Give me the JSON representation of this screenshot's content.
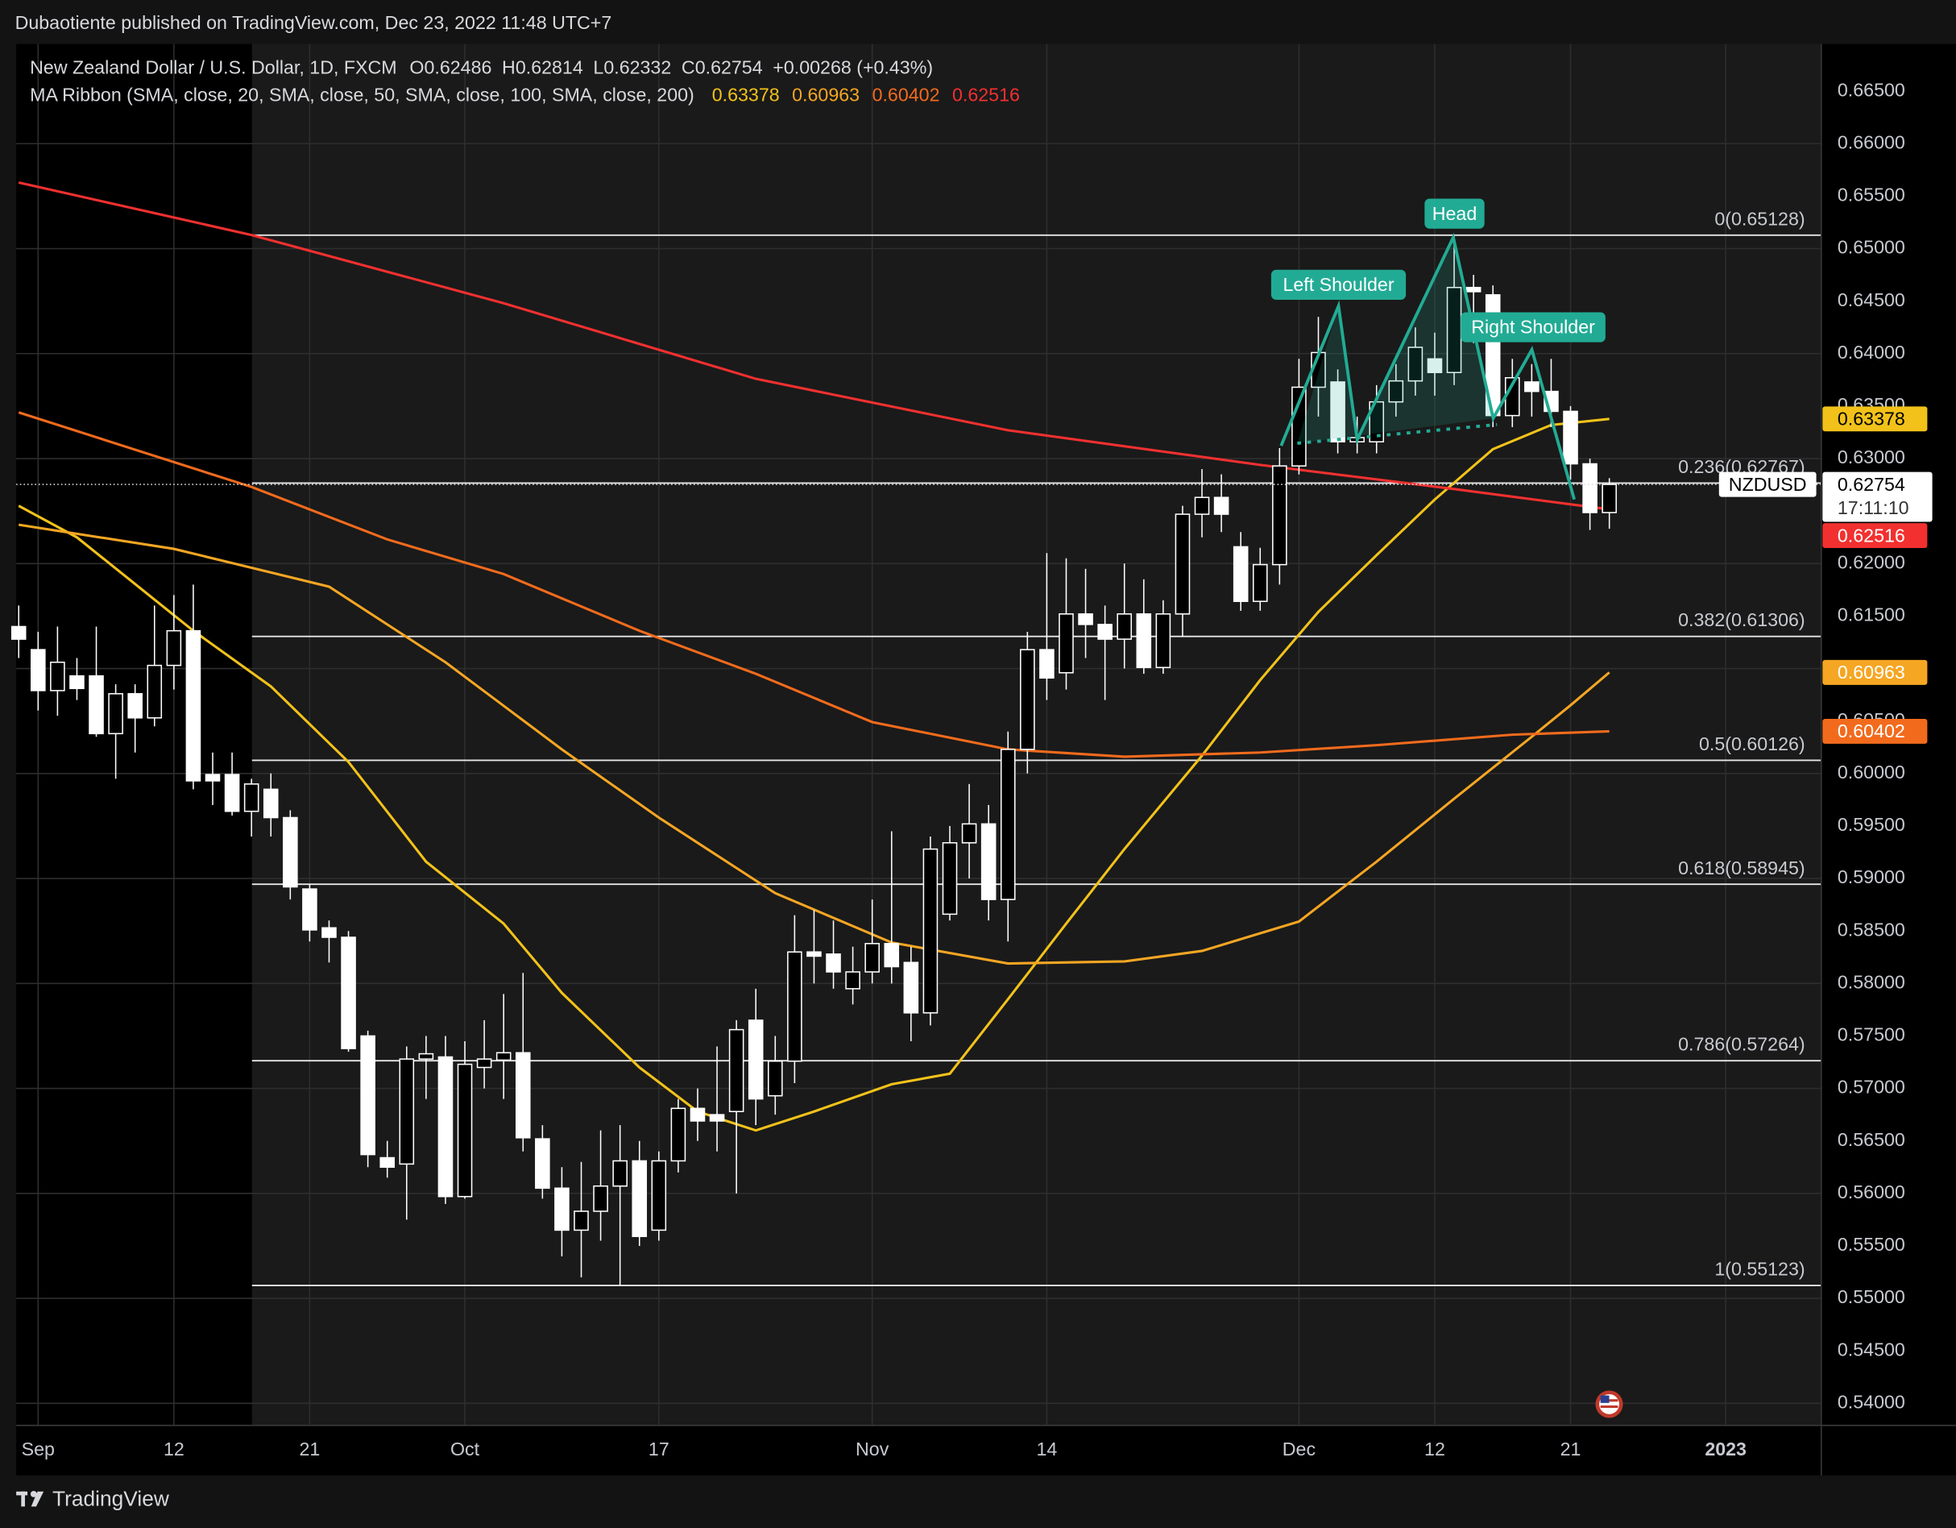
{
  "header": {
    "published": "Dubaotiente published on TradingView.com, Dec 23, 2022 11:48 UTC+7",
    "brand": "TradingView"
  },
  "chart_data": {
    "type": "candlestick",
    "title": "New Zealand Dollar / U.S. Dollar, 1D, FXCM",
    "ohlc_labels": [
      "O",
      "H",
      "L",
      "C"
    ],
    "change": "+0.00268 (+0.43%)",
    "indicator": "MA Ribbon (SMA, close, 20, SMA, close, 50, SMA, close, 100, SMA, close, 200)",
    "symbol": "NZDUSD",
    "countdown": "17:11:10",
    "categories": [
      null,
      "Sep",
      null,
      null,
      null,
      null,
      null,
      null,
      "12",
      null,
      null,
      null,
      null,
      null,
      null,
      "21",
      null,
      null,
      null,
      null,
      null,
      null,
      null,
      "Oct",
      null,
      null,
      null,
      null,
      null,
      null,
      null,
      null,
      null,
      "17",
      null,
      null,
      null,
      null,
      null,
      null,
      null,
      null,
      null,
      null,
      "Nov",
      null,
      null,
      null,
      null,
      null,
      null,
      null,
      null,
      "14",
      null,
      null,
      null,
      null,
      null,
      null,
      null,
      null,
      null,
      null,
      null,
      null,
      "Dec",
      null,
      null,
      null,
      null,
      null,
      null,
      "12",
      null,
      null,
      null,
      null,
      null,
      null,
      "21",
      null,
      null,
      null,
      null,
      null,
      null,
      null,
      "2023"
    ],
    "open": [
      0.614,
      0.6118,
      0.6079,
      0.6093,
      0.6093,
      0.6038,
      0.6076,
      0.6053,
      0.6103,
      0.6136,
      0.5999,
      0.5999,
      0.5964,
      0.5985,
      0.5958,
      0.589,
      0.5853,
      0.5844,
      0.575,
      0.5634,
      0.5628,
      0.5728,
      0.573,
      0.5597,
      0.572,
      0.5727,
      0.5734,
      0.5652,
      0.5605,
      0.5565,
      0.5583,
      0.5607,
      0.5631,
      0.5565,
      0.5631,
      0.5681,
      0.5675,
      0.5678,
      0.5765,
      0.5693,
      0.5726,
      0.583,
      0.5828,
      0.5795,
      0.5811,
      0.5838,
      0.582,
      0.5772,
      0.5866,
      0.5934,
      0.5952,
      0.588,
      0.6023,
      0.6118,
      0.6096,
      0.6152,
      0.6142,
      0.6128,
      0.6152,
      0.6101,
      0.6152,
      0.6247,
      0.6263,
      0.6216,
      0.6164,
      0.6199,
      0.6293,
      0.6368,
      0.6373,
      0.6316,
      0.6316,
      0.6354,
      0.6374,
      0.6395,
      0.6382,
      0.6463,
      0.6456,
      0.6341,
      0.6373,
      0.6364,
      0.6345,
      0.6295,
      0.62486,
      null,
      null,
      null,
      null,
      null,
      null
    ],
    "high": [
      0.616,
      0.6135,
      0.614,
      0.611,
      0.614,
      0.6085,
      0.6085,
      0.616,
      0.617,
      0.618,
      0.602,
      0.602,
      0.5995,
      0.6,
      0.5965,
      0.5895,
      0.586,
      0.585,
      0.5755,
      0.565,
      0.574,
      0.575,
      0.575,
      0.5745,
      0.5765,
      0.579,
      0.581,
      0.5665,
      0.5625,
      0.563,
      0.566,
      0.5665,
      0.565,
      0.564,
      0.569,
      0.57,
      0.574,
      0.5765,
      0.5795,
      0.575,
      0.5865,
      0.587,
      0.586,
      0.5835,
      0.588,
      0.5945,
      0.5835,
      0.594,
      0.595,
      0.599,
      0.597,
      0.604,
      0.6135,
      0.621,
      0.6205,
      0.6195,
      0.616,
      0.62,
      0.6185,
      0.6165,
      0.6255,
      0.629,
      0.6285,
      0.623,
      0.6215,
      0.631,
      0.6395,
      0.6435,
      0.6385,
      0.634,
      0.637,
      0.639,
      0.6425,
      0.642,
      0.6513,
      0.6475,
      0.6465,
      0.6395,
      0.639,
      0.6395,
      0.635,
      0.63,
      0.62814,
      null,
      null,
      null,
      null,
      null,
      null
    ],
    "low": [
      0.611,
      0.606,
      0.6055,
      0.607,
      0.6035,
      0.5995,
      0.602,
      0.6045,
      0.608,
      0.5985,
      0.597,
      0.596,
      0.594,
      0.594,
      0.588,
      0.584,
      0.582,
      0.5735,
      0.5625,
      0.5615,
      0.5575,
      0.569,
      0.559,
      0.5595,
      0.57,
      0.569,
      0.564,
      0.5595,
      0.554,
      0.552,
      0.5555,
      0.5512,
      0.555,
      0.5555,
      0.562,
      0.565,
      0.564,
      0.56,
      0.5665,
      0.5675,
      0.5705,
      0.58,
      0.5795,
      0.578,
      0.58,
      0.58,
      0.5745,
      0.576,
      0.586,
      0.59,
      0.586,
      0.584,
      0.6,
      0.607,
      0.608,
      0.611,
      0.607,
      0.61,
      0.6095,
      0.6095,
      0.613,
      0.6225,
      0.623,
      0.6155,
      0.6155,
      0.618,
      0.6285,
      0.634,
      0.6305,
      0.6305,
      0.6305,
      0.634,
      0.636,
      0.636,
      0.637,
      0.641,
      0.633,
      0.633,
      0.634,
      0.633,
      0.628,
      0.6232,
      0.62332,
      null,
      null,
      null,
      null,
      null,
      null
    ],
    "close": [
      0.6128,
      0.6079,
      0.6106,
      0.6081,
      0.6038,
      0.6076,
      0.6053,
      0.6103,
      0.6136,
      0.5993,
      0.5993,
      0.5964,
      0.599,
      0.5958,
      0.5892,
      0.5851,
      0.5844,
      0.5738,
      0.5637,
      0.5625,
      0.5728,
      0.5733,
      0.5597,
      0.5723,
      0.5728,
      0.5734,
      0.5653,
      0.5605,
      0.5565,
      0.5583,
      0.5607,
      0.5631,
      0.5559,
      0.5631,
      0.5681,
      0.5669,
      0.5669,
      0.5756,
      0.569,
      0.5726,
      0.583,
      0.5826,
      0.5811,
      0.5811,
      0.5838,
      0.5816,
      0.5772,
      0.5928,
      0.5934,
      0.5952,
      0.588,
      0.6023,
      0.6118,
      0.6091,
      0.6152,
      0.6142,
      0.6128,
      0.6152,
      0.6101,
      0.6152,
      0.6247,
      0.6263,
      0.6247,
      0.6164,
      0.6199,
      0.6293,
      0.6368,
      0.6401,
      0.6316,
      0.632,
      0.6354,
      0.6374,
      0.6406,
      0.6382,
      0.6463,
      0.6459,
      0.6341,
      0.6377,
      0.6364,
      0.6345,
      0.6295,
      0.62486,
      0.62754,
      null,
      null,
      null,
      null,
      null,
      null
    ],
    "up_color": "#000000",
    "down_color": "#ffffff",
    "wick_color": "#ffffff",
    "series": [
      {
        "color": "#f2c21a",
        "x": [
          0,
          3,
          9,
          13,
          17,
          21,
          25,
          28,
          32,
          35,
          38,
          41,
          45,
          48,
          51,
          54,
          57,
          61,
          64,
          67,
          70,
          73,
          76,
          79,
          82
        ],
        "values": [
          0.6255,
          0.6225,
          0.6136,
          0.6083,
          0.6011,
          0.5916,
          0.5857,
          0.5791,
          0.572,
          0.5678,
          0.566,
          0.5678,
          0.5704,
          0.5714,
          0.5785,
          0.5857,
          0.5928,
          0.6017,
          0.6089,
          0.6154,
          0.6208,
          0.6261,
          0.6309,
          0.6332,
          0.63378
        ]
      },
      {
        "color": "#f5a623",
        "x": [
          0,
          8,
          12,
          16,
          22,
          28,
          33,
          39,
          45,
          51,
          57,
          61,
          66,
          70,
          74,
          78,
          80,
          82
        ],
        "values": [
          0.6237,
          0.6214,
          0.6196,
          0.6178,
          0.6106,
          0.6023,
          0.5958,
          0.5886,
          0.5839,
          0.5819,
          0.5821,
          0.5831,
          0.5859,
          0.5916,
          0.5976,
          0.6035,
          0.6065,
          0.60963
        ]
      },
      {
        "color": "#f26b1d",
        "x": [
          0,
          12,
          19,
          25,
          32,
          38,
          44,
          51,
          57,
          64,
          70,
          77,
          82
        ],
        "values": [
          0.6344,
          0.6273,
          0.6223,
          0.619,
          0.6136,
          0.6095,
          0.6049,
          0.6023,
          0.6016,
          0.602,
          0.6027,
          0.6037,
          0.60402
        ]
      },
      {
        "color": "#f23030",
        "x": [
          0,
          12,
          25,
          38,
          51,
          64,
          74,
          82
        ],
        "values": [
          0.6563,
          0.6513,
          0.6448,
          0.6376,
          0.6327,
          0.6294,
          0.6271,
          0.62516
        ]
      }
    ],
    "fib_levels": [
      {
        "value": 0.65128,
        "label": "0(0.65128)"
      },
      {
        "value": 0.62767,
        "label": "0.236(0.62767)"
      },
      {
        "value": 0.61306,
        "label": "0.382(0.61306)"
      },
      {
        "value": 0.60126,
        "label": "0.5(0.60126)"
      },
      {
        "value": 0.58945,
        "label": "0.618(0.58945)"
      },
      {
        "value": 0.57264,
        "label": "0.786(0.57264)"
      },
      {
        "value": 0.55123,
        "label": "1(0.55123)"
      }
    ],
    "annotations": [
      "Left Shoulder",
      "Head",
      "Right Shoulder"
    ],
    "ylim": [
      0.5379,
      0.6695
    ],
    "yticks": [
      {
        "value": 0.54,
        "label": "0.54000"
      },
      {
        "value": 0.545,
        "label": "0.54500"
      },
      {
        "value": 0.55,
        "label": "0.55000"
      },
      {
        "value": 0.555,
        "label": "0.55500"
      },
      {
        "value": 0.56,
        "label": "0.56000"
      },
      {
        "value": 0.565,
        "label": "0.56500"
      },
      {
        "value": 0.57,
        "label": "0.57000"
      },
      {
        "value": 0.575,
        "label": "0.57500"
      },
      {
        "value": 0.58,
        "label": "0.58000"
      },
      {
        "value": 0.585,
        "label": "0.58500"
      },
      {
        "value": 0.59,
        "label": "0.59000"
      },
      {
        "value": 0.595,
        "label": "0.59500"
      },
      {
        "value": 0.6,
        "label": "0.60000"
      },
      {
        "value": 0.605,
        "label": "0.60500"
      },
      {
        "value": 0.61,
        "label": "0.61000"
      },
      {
        "value": 0.615,
        "label": "0.61500"
      },
      {
        "value": 0.62,
        "label": "0.62000"
      },
      {
        "value": 0.625,
        "label": "0.62500"
      },
      {
        "value": 0.63,
        "label": "0.63000"
      },
      {
        "value": 0.635,
        "label": "0.63500"
      },
      {
        "value": 0.64,
        "label": "0.64000"
      },
      {
        "value": 0.645,
        "label": "0.64500"
      },
      {
        "value": 0.65,
        "label": "0.65000"
      },
      {
        "value": 0.655,
        "label": "0.65500"
      },
      {
        "value": 0.66,
        "label": "0.66000"
      },
      {
        "value": 0.665,
        "label": "0.66500"
      }
    ],
    "grid": true
  }
}
